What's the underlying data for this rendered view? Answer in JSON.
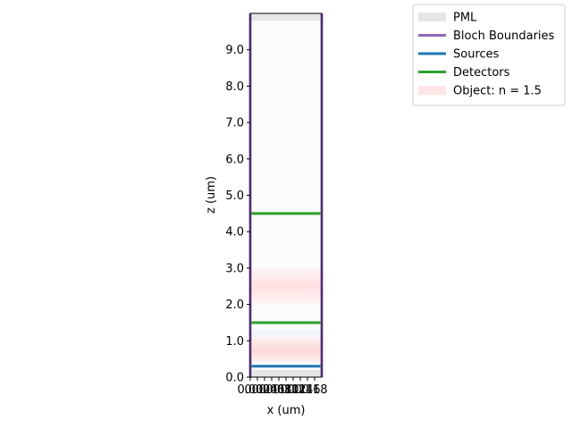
{
  "chart_data": {
    "type": "area",
    "xlabel": "x (um)",
    "ylabel": "z (um)",
    "xlim": [
      0,
      0.2
    ],
    "ylim": [
      0,
      10.0
    ],
    "yticks": [
      0.0,
      1.0,
      2.0,
      3.0,
      4.0,
      5.0,
      6.0,
      7.0,
      8.0,
      9.0
    ],
    "ytick_labels": [
      "0.0",
      "1.0",
      "2.0",
      "3.0",
      "4.0",
      "5.0",
      "6.0",
      "7.0",
      "8.0",
      "9.0"
    ],
    "xticks": [
      0.0,
      0.02,
      0.04,
      0.06,
      0.08,
      0.1,
      0.12,
      0.14,
      0.16,
      0.18
    ],
    "xtick_labels": [
      "0.00",
      "0.02",
      "0.04",
      "0.06",
      "0.08",
      "0.10",
      "0.12",
      "0.14",
      "0.16",
      "0.18"
    ],
    "legend_position": "top-right",
    "legend": [
      {
        "label": "PML",
        "kind": "patch",
        "color": "#e6e6e6"
      },
      {
        "label": "Bloch Boundaries",
        "kind": "line",
        "color": "#9467bd"
      },
      {
        "label": "Sources",
        "kind": "line",
        "color": "#1f77b4"
      },
      {
        "label": "Detectors",
        "kind": "line",
        "color": "#2ca02c"
      },
      {
        "label": "Object: n = 1.5",
        "kind": "patch",
        "color": "#ffe5e5"
      }
    ],
    "pml_regions": [
      {
        "z0": 0.0,
        "z1": 0.2
      },
      {
        "z0": 9.8,
        "z1": 10.0
      }
    ],
    "bloch_boundaries_x": [
      0.0,
      0.2
    ],
    "sources_z": [
      0.3
    ],
    "detectors_z": [
      1.5,
      4.5
    ],
    "objects": [
      {
        "z0": 0.4,
        "z1": 1.1,
        "color": "#fdd7d7"
      },
      {
        "z0": 2.0,
        "z1": 3.0,
        "color": "#ffe0e0"
      }
    ]
  }
}
